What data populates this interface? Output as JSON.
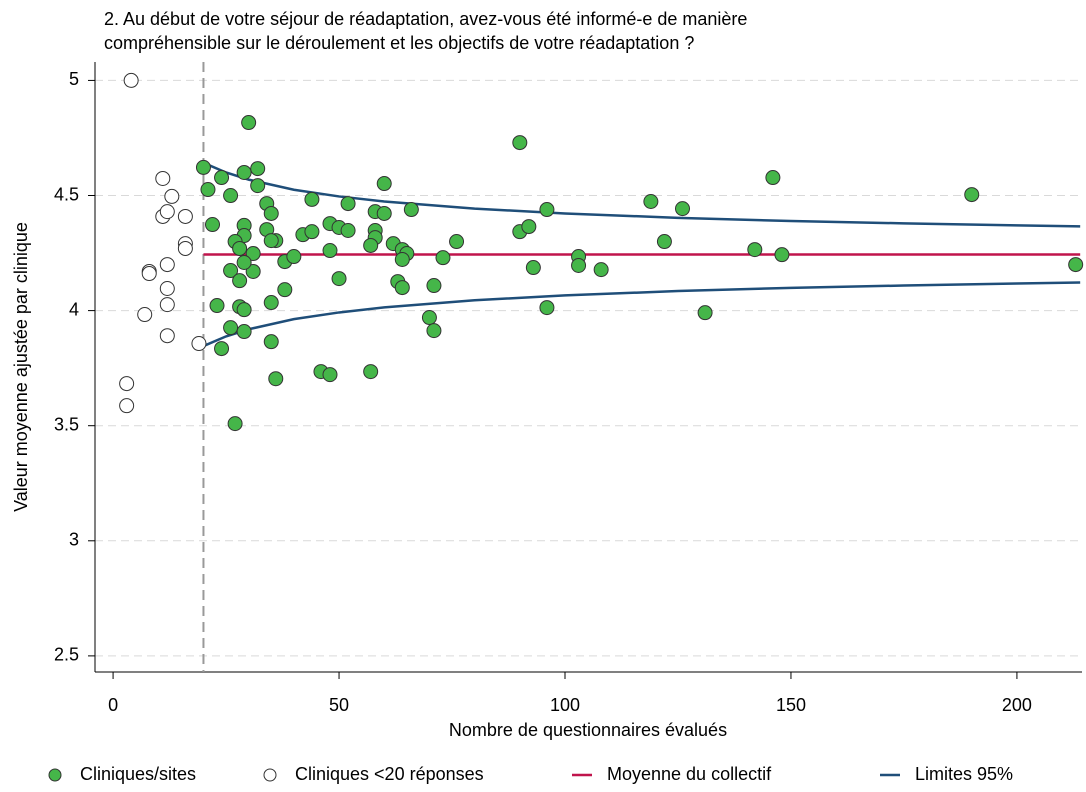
{
  "chart_data": {
    "type": "scatter",
    "title": [
      "2. Au début de votre séjour de réadaptation, avez-vous été informé-e de manière",
      "compréhensible sur le déroulement et les objectifs de votre réadaptation ?"
    ],
    "x_label": "Nombre de questionnaires évalués",
    "y_label": "Valeur moyenne ajustée par clinique",
    "xlim": [
      -4,
      214.4
    ],
    "ylim": [
      2.43,
      5.08
    ],
    "xticks": [
      0,
      50,
      100,
      150,
      200
    ],
    "yticks": [
      2.5,
      3,
      3.5,
      4,
      4.5,
      5
    ],
    "grid": true,
    "vline": 20,
    "legend": "bottom",
    "series": [
      {
        "name": "Cliniques/sites",
        "kind": "points",
        "color": "#45b649",
        "x": [
          30,
          20,
          32,
          24,
          29,
          32,
          21,
          26,
          44,
          22,
          29,
          29,
          34,
          35,
          34,
          27,
          28,
          31,
          36,
          35,
          26,
          28,
          31,
          29,
          38,
          38,
          40,
          23,
          28,
          29,
          35,
          26,
          29,
          24,
          35,
          36,
          27,
          42,
          44,
          52,
          48,
          50,
          52,
          48,
          50,
          46,
          48,
          60,
          58,
          60,
          58,
          58,
          57,
          62,
          66,
          64,
          65,
          64,
          63,
          64,
          57,
          73,
          76,
          71,
          70,
          71,
          90,
          90,
          92,
          96,
          93,
          96,
          103,
          103,
          108,
          119,
          122,
          126,
          131,
          146,
          142,
          148,
          190,
          213
        ],
        "values": [
          4.817,
          4.622,
          4.617,
          4.578,
          4.6,
          4.543,
          4.526,
          4.5,
          4.483,
          4.374,
          4.37,
          4.326,
          4.465,
          4.422,
          4.352,
          4.3,
          4.27,
          4.248,
          4.304,
          4.304,
          4.174,
          4.13,
          4.17,
          4.209,
          4.213,
          4.091,
          4.235,
          4.022,
          4.017,
          4.004,
          4.035,
          3.926,
          3.909,
          3.835,
          3.865,
          3.704,
          3.509,
          4.33,
          4.343,
          4.465,
          4.378,
          4.361,
          4.348,
          4.261,
          4.139,
          3.735,
          3.722,
          4.552,
          4.43,
          4.422,
          4.348,
          4.317,
          4.283,
          4.291,
          4.439,
          4.265,
          4.248,
          4.222,
          4.126,
          4.1,
          3.735,
          4.23,
          4.3,
          4.109,
          3.97,
          3.913,
          4.73,
          4.343,
          4.365,
          4.439,
          4.187,
          4.013,
          4.235,
          4.196,
          4.178,
          4.474,
          4.3,
          4.443,
          3.991,
          4.578,
          4.265,
          4.243,
          4.504,
          4.2
        ]
      },
      {
        "name": "Cliniques <20 réponses",
        "kind": "points",
        "color": "#ffffff",
        "x": [
          4,
          11,
          13,
          11,
          12,
          16,
          16,
          16,
          12,
          8,
          8,
          12,
          12,
          7,
          12,
          19,
          3,
          3
        ],
        "values": [
          5.0,
          4.574,
          4.496,
          4.409,
          4.43,
          4.409,
          4.291,
          4.27,
          4.2,
          4.17,
          4.161,
          4.096,
          4.026,
          3.983,
          3.891,
          3.857,
          3.683,
          3.587
        ]
      },
      {
        "name": "Moyenne du collectif",
        "kind": "line",
        "color": "#c0144c",
        "x": [
          20,
          214
        ],
        "values": [
          4.244,
          4.244
        ]
      },
      {
        "name": "Limites 95%",
        "kind": "band",
        "color": "#1f4e79",
        "x": [
          20,
          25,
          30,
          40,
          50,
          60,
          80,
          100,
          125,
          150,
          175,
          200,
          214
        ],
        "values": [
          4.642,
          4.6,
          4.569,
          4.525,
          4.496,
          4.474,
          4.443,
          4.422,
          4.403,
          4.389,
          4.379,
          4.37,
          4.366
        ],
        "lower": [
          3.846,
          3.888,
          3.919,
          3.963,
          3.992,
          4.014,
          4.045,
          4.066,
          4.085,
          4.099,
          4.109,
          4.118,
          4.122
        ]
      }
    ]
  }
}
